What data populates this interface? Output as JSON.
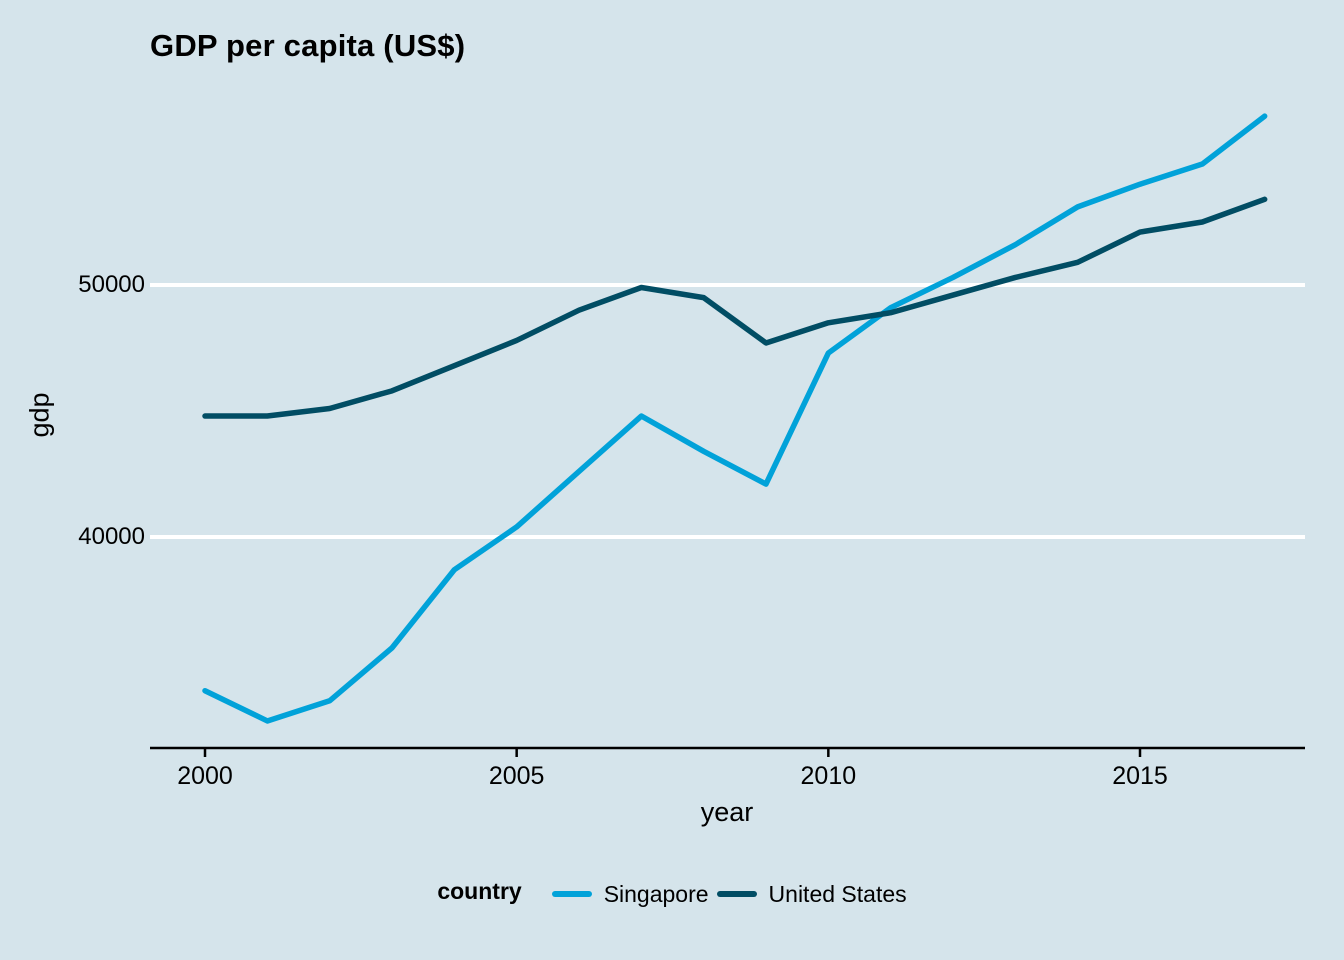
{
  "chart_data": {
    "type": "line",
    "title": "GDP per capita (US$)",
    "xlabel": "year",
    "ylabel": "gdp",
    "legend_title": "country",
    "legend_position": "bottom",
    "grid": "horizontal-major-only",
    "xlim": [
      2000,
      2017
    ],
    "ylim": [
      32000,
      57500
    ],
    "xticks": [
      2000,
      2005,
      2010,
      2015
    ],
    "yticks": [
      40000,
      50000
    ],
    "x": [
      2000,
      2001,
      2002,
      2003,
      2004,
      2005,
      2006,
      2007,
      2008,
      2009,
      2010,
      2011,
      2012,
      2013,
      2014,
      2015,
      2016,
      2017
    ],
    "series": [
      {
        "name": "Singapore",
        "color": "#01a2d9",
        "values": [
          33900,
          32700,
          33500,
          35600,
          38700,
          40400,
          42600,
          44800,
          43400,
          42100,
          47300,
          49100,
          50300,
          51600,
          53100,
          54000,
          54800,
          56700
        ]
      },
      {
        "name": "United States",
        "color": "#014d64",
        "values": [
          44800,
          44800,
          45100,
          45800,
          46800,
          47800,
          49000,
          49900,
          49500,
          47700,
          48500,
          48900,
          49600,
          50300,
          50900,
          52100,
          52500,
          53400
        ]
      }
    ],
    "colors": {
      "background": "#d5e4eb",
      "gridline": "#ffffff",
      "axis": "#000000"
    }
  }
}
